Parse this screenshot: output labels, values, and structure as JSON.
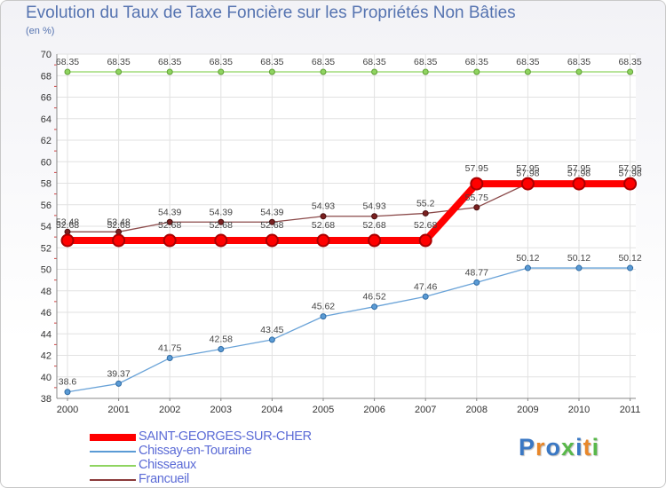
{
  "chart_data": {
    "type": "line",
    "title": "Evolution du Taux de Taxe Foncière sur les Propriétés Non Bâties",
    "subtitle": "(en %)",
    "xlabel": "",
    "ylabel": "(en %)",
    "x": [
      "2000",
      "2001",
      "2002",
      "2003",
      "2004",
      "2005",
      "2006",
      "2007",
      "2008",
      "2009",
      "2010",
      "2011"
    ],
    "ylim": [
      38,
      70
    ],
    "yticks": [
      "38",
      "40",
      "42",
      "44",
      "46",
      "48",
      "50",
      "52",
      "54",
      "56",
      "58",
      "60",
      "62",
      "64",
      "66",
      "68",
      "70"
    ],
    "grid": true,
    "legend_position": "bottom-left",
    "series": [
      {
        "name": "SAINT-GEORGES-SUR-CHER",
        "color": "#ff0000",
        "values": [
          52.68,
          52.68,
          52.68,
          52.68,
          52.68,
          52.68,
          52.68,
          52.68,
          57.95,
          57.95,
          57.95,
          57.95
        ],
        "labels": [
          "52.68",
          "52.68",
          "52.68",
          "52.68",
          "52.68",
          "52.68",
          "52.68",
          "52.68",
          "57.95",
          "57.95",
          "57.95",
          "57.95"
        ]
      },
      {
        "name": "Chissay-en-Touraine",
        "color": "#5b9bd5",
        "values": [
          38.6,
          39.37,
          41.75,
          42.58,
          43.45,
          45.62,
          46.52,
          47.46,
          48.77,
          50.12,
          50.12,
          50.12
        ],
        "labels": [
          "38.6",
          "39.37",
          "41.75",
          "42.58",
          "43.45",
          "45.62",
          "46.52",
          "47.46",
          "48.77",
          "50.12",
          "50.12",
          "50.12"
        ]
      },
      {
        "name": "Chisseaux",
        "color": "#8fd460",
        "values": [
          68.35,
          68.35,
          68.35,
          68.35,
          68.35,
          68.35,
          68.35,
          68.35,
          68.35,
          68.35,
          68.35,
          68.35
        ],
        "labels": [
          "68.35",
          "68.35",
          "68.35",
          "68.35",
          "68.35",
          "68.35",
          "68.35",
          "68.35",
          "68.35",
          "68.35",
          "68.35",
          "68.35"
        ]
      },
      {
        "name": "Francueil",
        "color": "#8b3a3a",
        "values": [
          53.48,
          53.48,
          54.39,
          54.39,
          54.39,
          54.93,
          54.93,
          55.2,
          55.75,
          57.98,
          57.98,
          57.98
        ],
        "labels": [
          "53.48",
          "53.48",
          "54.39",
          "54.39",
          "54.39",
          "54.93",
          "54.93",
          "55.2",
          "55.75",
          "57.98",
          "57.98",
          "57.98"
        ]
      }
    ]
  },
  "logo": {
    "text": "Proxiti",
    "letter_colors": [
      "#3a78c4",
      "#e8872a",
      "#3a78c4",
      "#59b84a",
      "#3a78c4",
      "#e8872a",
      "#59b84a"
    ]
  }
}
